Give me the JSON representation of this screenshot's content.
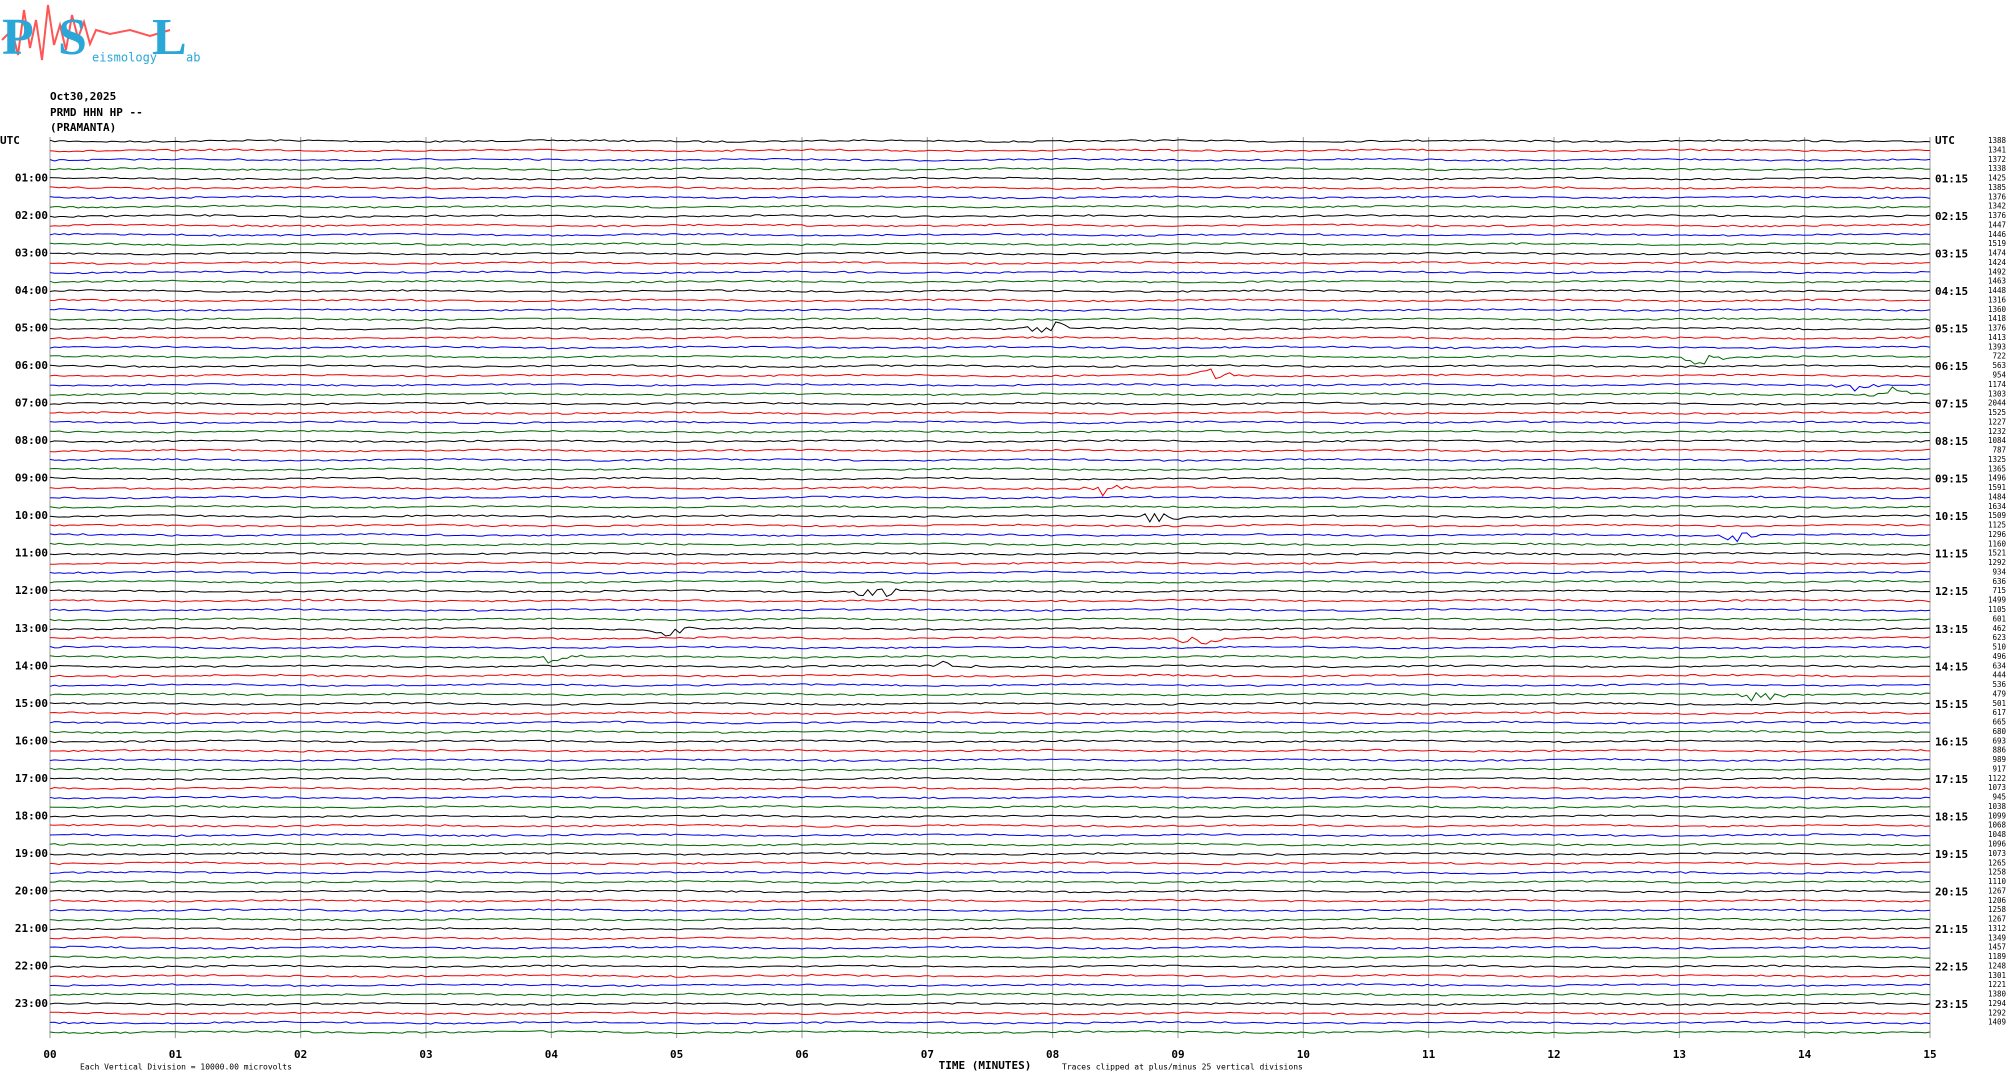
{
  "logo": {
    "letters": [
      "P",
      "S",
      "L"
    ],
    "words": [
      "eismology",
      "ab"
    ]
  },
  "header": {
    "date": "Oct30,2025",
    "station": "PRMD HHN HP --",
    "site": "(PRAMANTA)"
  },
  "left_labels": [
    "UTC",
    "01:00",
    "02:00",
    "03:00",
    "04:00",
    "05:00",
    "06:00",
    "07:00",
    "08:00",
    "09:00",
    "10:00",
    "11:00",
    "12:00",
    "13:00",
    "14:00",
    "15:00",
    "16:00",
    "17:00",
    "18:00",
    "19:00",
    "20:00",
    "21:00",
    "22:00",
    "23:00"
  ],
  "right_labels": [
    "UTC",
    "01:15",
    "02:15",
    "03:15",
    "04:15",
    "05:15",
    "06:15",
    "07:15",
    "08:15",
    "09:15",
    "10:15",
    "11:15",
    "12:15",
    "13:15",
    "14:15",
    "15:15",
    "16:15",
    "17:15",
    "18:15",
    "19:15",
    "20:15",
    "21:15",
    "22:15",
    "23:15"
  ],
  "trace_values": [
    "1388",
    "1341",
    "1372",
    "1338",
    "1425",
    "1385",
    "1376",
    "1342",
    "1376",
    "1447",
    "1446",
    "1519",
    "1474",
    "1424",
    "1492",
    "1463",
    "1448",
    "1316",
    "1360",
    "1418",
    "1376",
    "1413",
    "1393",
    "722",
    "563",
    "954",
    "1174",
    "1303",
    "2044",
    "1525",
    "1227",
    "1232",
    "1084",
    "787",
    "1325",
    "1365",
    "1496",
    "1591",
    "1484",
    "1634",
    "1509",
    "1125",
    "1296",
    "1160",
    "1521",
    "1292",
    "934",
    "636",
    "715",
    "1499",
    "1105",
    "601",
    "462",
    "623",
    "510",
    "496",
    "634",
    "444",
    "536",
    "479",
    "501",
    "617",
    "665",
    "680",
    "693",
    "886",
    "989",
    "917",
    "1122",
    "1073",
    "945",
    "1038",
    "1099",
    "1068",
    "1048",
    "1096",
    "1073",
    "1265",
    "1258",
    "1110",
    "1267",
    "1206",
    "1258",
    "1267",
    "1312",
    "1349",
    "1457",
    "1189",
    "1248",
    "1301",
    "1221",
    "1380",
    "1294",
    "1292",
    "1409"
  ],
  "x_labels": [
    "00",
    "01",
    "02",
    "03",
    "04",
    "05",
    "06",
    "07",
    "08",
    "09",
    "10",
    "11",
    "12",
    "13",
    "14",
    "15"
  ],
  "footer": {
    "division": "Each Vertical Division = 10000.00 microvolts",
    "axis_title": "TIME (MINUTES)",
    "clip_note": "Traces clipped at plus/minus 25 vertical divisions"
  }
}
